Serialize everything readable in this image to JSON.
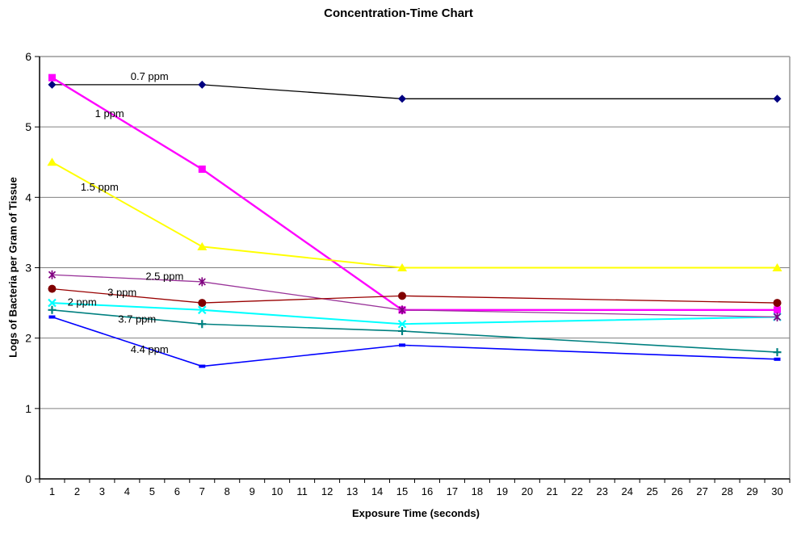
{
  "title": "Concentration-Time Chart",
  "chart_data": {
    "type": "line",
    "title": "Concentration-Time Chart",
    "xlabel": "Exposure Time (seconds)",
    "ylabel": "Logs of Bacteria per Gram of Tissue",
    "x": [
      1,
      7,
      15,
      30
    ],
    "x_ticks": [
      1,
      2,
      3,
      4,
      5,
      6,
      7,
      8,
      9,
      10,
      11,
      12,
      13,
      14,
      15,
      16,
      17,
      18,
      19,
      20,
      21,
      22,
      23,
      24,
      25,
      26,
      27,
      28,
      29,
      30
    ],
    "y_ticks": [
      0,
      1,
      2,
      3,
      4,
      5,
      6
    ],
    "ylim": [
      0,
      6
    ],
    "grid": true,
    "legend": "none",
    "gridline_color": "#808080",
    "border_color": "#999999",
    "axis_color": "#000000",
    "series": [
      {
        "name": "0.7 ppm",
        "line_color": "#000000",
        "marker": "diamond",
        "marker_color": "#000080",
        "values": [
          5.6,
          5.6,
          5.4,
          5.4
        ]
      },
      {
        "name": "1 ppm",
        "line_color": "#FF00FF",
        "marker": "square",
        "marker_color": "#FF00FF",
        "values": [
          5.7,
          4.4,
          2.4,
          2.4
        ]
      },
      {
        "name": "1.5 ppm",
        "line_color": "#FFFF00",
        "marker": "triangle",
        "marker_color": "#FFFF00",
        "values": [
          4.5,
          3.3,
          3.0,
          3.0
        ]
      },
      {
        "name": "2 ppm",
        "line_color": "#00FFFF",
        "marker": "x",
        "marker_color": "#00FFFF",
        "values": [
          2.5,
          2.4,
          2.2,
          2.3
        ]
      },
      {
        "name": "2.5 ppm",
        "line_color": "#993399",
        "marker": "star",
        "marker_color": "#800080",
        "values": [
          2.9,
          2.8,
          2.4,
          2.3
        ]
      },
      {
        "name": "3 ppm",
        "line_color": "#990000",
        "marker": "circle",
        "marker_color": "#800000",
        "values": [
          2.7,
          2.5,
          2.6,
          2.5
        ]
      },
      {
        "name": "3.7 ppm",
        "line_color": "#008080",
        "marker": "plus",
        "marker_color": "#008080",
        "values": [
          2.4,
          2.2,
          2.1,
          1.8
        ]
      },
      {
        "name": "4.4 ppm",
        "line_color": "#0000FF",
        "marker": "dash",
        "marker_color": "#0000FF",
        "values": [
          2.3,
          1.6,
          1.9,
          1.7
        ]
      }
    ],
    "annotations": [
      {
        "text": "0.7 ppm",
        "x": 4.9,
        "y": 5.72
      },
      {
        "text": "1 ppm",
        "x": 3.3,
        "y": 5.19
      },
      {
        "text": "1.5 ppm",
        "x": 2.9,
        "y": 4.15
      },
      {
        "text": "2.5 ppm",
        "x": 5.5,
        "y": 2.88
      },
      {
        "text": "3 ppm",
        "x": 3.8,
        "y": 2.65
      },
      {
        "text": "2 ppm",
        "x": 2.2,
        "y": 2.51
      },
      {
        "text": "3.7 ppm",
        "x": 4.4,
        "y": 2.27
      },
      {
        "text": "4.4 ppm",
        "x": 4.9,
        "y": 1.84
      }
    ]
  }
}
